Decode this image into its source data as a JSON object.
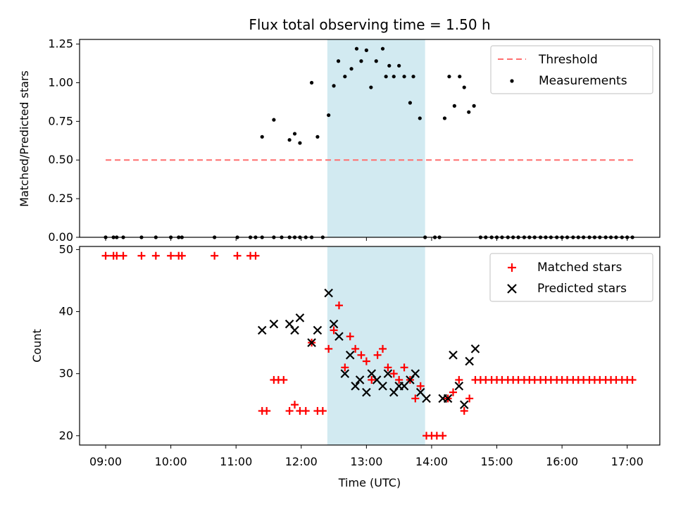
{
  "chart_data": {
    "type": "scatter",
    "title": "Flux total observing time = 1.50 h",
    "xlabel": "Time (UTC)",
    "xticks": [
      "09:00",
      "10:00",
      "11:00",
      "12:00",
      "13:00",
      "14:00",
      "15:00",
      "16:00",
      "17:00"
    ],
    "x_range_hours": [
      8.6,
      17.5
    ],
    "highlight_span_hours": [
      12.4,
      13.9
    ],
    "colors": {
      "highlight": "#add8e6",
      "threshold": "#ff6f6f",
      "measurements": "#000000",
      "matched": "#ff0000",
      "predicted": "#000000"
    },
    "panels": [
      {
        "ylabel": "Matched/Predicted stars",
        "ylim": [
          0,
          1.28
        ],
        "yticks": [
          "0.00",
          "0.25",
          "0.50",
          "0.75",
          "1.00",
          "1.25"
        ],
        "legend": [
          "Threshold",
          "Measurements"
        ],
        "threshold": {
          "y": 0.5,
          "x_start": 9.0,
          "x_end": 17.1
        },
        "measurements": {
          "x": [
            9.0,
            9.12,
            9.17,
            9.27,
            9.55,
            9.77,
            10.0,
            10.12,
            10.17,
            10.67,
            11.02,
            11.22,
            11.3,
            11.4,
            11.58,
            11.7,
            11.82,
            11.9,
            11.98,
            12.07,
            12.16,
            12.33,
            12.5,
            12.57,
            12.67,
            12.77,
            12.85,
            12.92,
            13.0,
            13.07,
            13.15,
            13.25,
            13.3,
            13.35,
            13.42,
            13.5,
            13.58,
            13.67,
            13.72,
            13.82,
            13.9,
            14.05,
            14.12,
            14.2,
            14.27,
            14.35,
            14.43,
            14.5,
            14.57,
            14.65,
            14.75,
            14.83,
            14.92,
            15.0,
            15.08,
            15.17,
            15.25,
            15.33,
            15.42,
            15.5,
            15.58,
            15.67,
            15.75,
            15.83,
            15.92,
            16.0,
            16.08,
            16.17,
            16.25,
            16.33,
            16.42,
            16.5,
            16.58,
            16.67,
            16.75,
            16.83,
            16.92,
            17.0,
            17.08
          ],
          "y": [
            0,
            0,
            0,
            0,
            0,
            0,
            0,
            0,
            0,
            0,
            0,
            0,
            0,
            0,
            0,
            0,
            0,
            0,
            0,
            0,
            0,
            0,
            0.98,
            1.14,
            1.04,
            1.09,
            1.22,
            1.14,
            1.21,
            0.97,
            1.14,
            1.22,
            1.04,
            1.11,
            1.04,
            1.11,
            1.04,
            0.87,
            1.04,
            0.77,
            0,
            0,
            0,
            0.77,
            1.04,
            0.85,
            1.04,
            0.97,
            0.81,
            0.85,
            0,
            0,
            0,
            0,
            0,
            0,
            0,
            0,
            0,
            0,
            0,
            0,
            0,
            0,
            0,
            0,
            0,
            0,
            0,
            0,
            0,
            0,
            0,
            0,
            0,
            0,
            0,
            0,
            0
          ]
        },
        "measurements_extra": {
          "x": [
            11.4,
            11.58,
            11.82,
            11.9,
            11.98,
            12.16,
            12.25,
            12.42
          ],
          "y": [
            0.65,
            0.76,
            0.63,
            0.67,
            0.61,
            1.0,
            0.65,
            0.79
          ]
        }
      },
      {
        "ylabel": "Count",
        "ylim": [
          18.5,
          50.5
        ],
        "yticks": [
          "20",
          "30",
          "40",
          "50"
        ],
        "legend": [
          "Matched stars",
          "Predicted stars"
        ],
        "matched": {
          "x": [
            9.0,
            9.12,
            9.17,
            9.27,
            9.55,
            9.77,
            10.0,
            10.12,
            10.17,
            10.67,
            11.02,
            11.22,
            11.3,
            11.4,
            11.47,
            11.58,
            11.65,
            11.73,
            11.82,
            11.9,
            11.98,
            12.07,
            12.16,
            12.25,
            12.33,
            12.42,
            12.5,
            12.58,
            12.67,
            12.75,
            12.83,
            12.92,
            13.0,
            13.08,
            13.17,
            13.25,
            13.33,
            13.42,
            13.5,
            13.58,
            13.67,
            13.75,
            13.83,
            13.92,
            14.0,
            14.08,
            14.17,
            14.25,
            14.33,
            14.42,
            14.5,
            14.58,
            14.67,
            14.75,
            14.83,
            14.92,
            15.0,
            15.08,
            15.17,
            15.25,
            15.33,
            15.42,
            15.5,
            15.58,
            15.67,
            15.75,
            15.83,
            15.92,
            16.0,
            16.08,
            16.17,
            16.25,
            16.33,
            16.42,
            16.5,
            16.58,
            16.67,
            16.75,
            16.83,
            16.92,
            17.0,
            17.08
          ],
          "y": [
            49,
            49,
            49,
            49,
            49,
            49,
            49,
            49,
            49,
            49,
            49,
            49,
            49,
            24,
            24,
            29,
            29,
            29,
            24,
            25,
            24,
            24,
            35,
            24,
            24,
            34,
            37,
            41,
            31,
            36,
            34,
            33,
            32,
            29,
            33,
            34,
            31,
            30,
            29,
            31,
            29,
            26,
            28,
            20,
            20,
            20,
            20,
            26,
            27,
            29,
            24,
            26,
            29,
            29,
            29,
            29,
            29,
            29,
            29,
            29,
            29,
            29,
            29,
            29,
            29,
            29,
            29,
            29,
            29,
            29,
            29,
            29,
            29,
            29,
            29,
            29,
            29,
            29,
            29,
            29,
            29,
            29
          ]
        },
        "predicted": {
          "x": [
            11.4,
            11.58,
            11.82,
            11.9,
            11.98,
            12.16,
            12.25,
            12.42,
            12.5,
            12.58,
            12.67,
            12.75,
            12.83,
            12.9,
            13.0,
            13.08,
            13.16,
            13.25,
            13.33,
            13.42,
            13.5,
            13.58,
            13.67,
            13.75,
            13.83,
            13.92,
            14.17,
            14.25,
            14.33,
            14.42,
            14.5,
            14.58,
            14.67
          ],
          "y": [
            37,
            38,
            38,
            37,
            39,
            35,
            37,
            43,
            38,
            36,
            30,
            33,
            28,
            29,
            27,
            30,
            29,
            28,
            30,
            27,
            28,
            28,
            29,
            30,
            27,
            26,
            26,
            26,
            33,
            28,
            25,
            32,
            34
          ]
        }
      }
    ]
  }
}
